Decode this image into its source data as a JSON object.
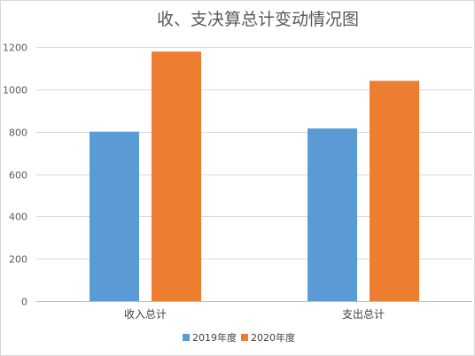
{
  "chart_data": {
    "type": "bar",
    "title": "收、支决算总计变动情况图",
    "categories": [
      "收入总计",
      "支出总计"
    ],
    "series": [
      {
        "name": "2019年度",
        "color": "#5b9bd5",
        "values": [
          800,
          815
        ]
      },
      {
        "name": "2020年度",
        "color": "#ed7d31",
        "values": [
          1178,
          1040
        ]
      }
    ],
    "yticks": [
      "0",
      "200",
      "400",
      "600",
      "800",
      "1000",
      "1200"
    ],
    "ylim": [
      0,
      1200
    ],
    "xlabel": "",
    "ylabel": "",
    "grid": true,
    "legend": "bottom"
  }
}
